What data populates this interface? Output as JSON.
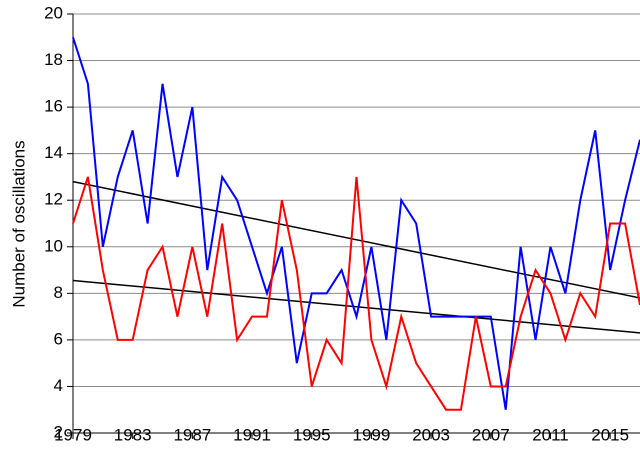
{
  "chart_data": {
    "type": "line",
    "y_label": "Number of oscillations",
    "x": [
      1979,
      1980,
      1981,
      1982,
      1983,
      1984,
      1985,
      1986,
      1987,
      1988,
      1989,
      1990,
      1991,
      1992,
      1993,
      1994,
      1995,
      1996,
      1997,
      1998,
      1999,
      2000,
      2001,
      2002,
      2003,
      2004,
      2005,
      2006,
      2007,
      2008,
      2009,
      2010,
      2011,
      2012,
      2013,
      2014,
      2015,
      2016,
      2017
    ],
    "series": [
      {
        "color": "#0000ff",
        "values": [
          19,
          17,
          10,
          13,
          15,
          11,
          17,
          13,
          16,
          9,
          13,
          12,
          10,
          8,
          10,
          5,
          8,
          8,
          9,
          7,
          10,
          6,
          12,
          11,
          7,
          7,
          7,
          7,
          7,
          3,
          10,
          6,
          10,
          8,
          12,
          15,
          9,
          12,
          14.6
        ]
      },
      {
        "color": "#ff0000",
        "values": [
          11,
          13,
          9,
          6,
          6,
          9,
          10,
          7,
          10,
          7,
          11,
          6,
          7,
          7,
          12,
          9,
          4,
          6,
          5,
          13,
          6,
          4,
          7,
          5,
          4,
          3,
          3,
          7,
          4,
          4,
          7,
          9,
          8,
          6,
          8,
          7,
          11,
          11,
          7.5
        ]
      }
    ],
    "trend_lines": [
      {
        "color": "#000000",
        "x": [
          1979,
          2017
        ],
        "values": [
          12.8,
          7.8
        ]
      },
      {
        "color": "#000000",
        "x": [
          1979,
          2017
        ],
        "values": [
          8.55,
          6.3
        ]
      }
    ],
    "xlim": [
      1979,
      2017
    ],
    "xticks": [
      1979,
      1983,
      1987,
      1991,
      1995,
      1999,
      2003,
      2007,
      2011,
      2015
    ],
    "ylim": [
      2,
      20
    ],
    "yticks": [
      2,
      4,
      6,
      8,
      10,
      12,
      14,
      16,
      18,
      20
    ],
    "grid": true
  }
}
